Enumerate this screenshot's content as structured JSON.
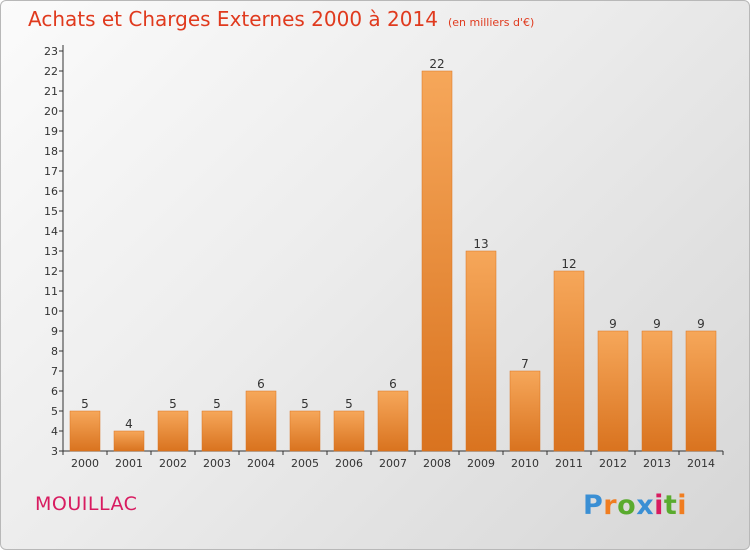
{
  "title": "Achats et Charges Externes 2000 à 2014",
  "unit_note": "(en milliers d'€)",
  "commune": "MOUILLAC",
  "logo": {
    "letters": [
      "P",
      "r",
      "o",
      "x",
      "i",
      "t",
      "i"
    ],
    "colors": [
      "#3a8fd4",
      "#f07d20",
      "#5aab2e",
      "#3a8fd4",
      "#d81b60",
      "#5aab2e",
      "#f07d20"
    ]
  },
  "colors": {
    "title": "#e03a1e",
    "commune": "#d81b60",
    "bar_light": "#f6a75a",
    "bar_dark": "#d9731f"
  },
  "chart_data": {
    "type": "bar",
    "categories": [
      "2000",
      "2001",
      "2002",
      "2003",
      "2004",
      "2005",
      "2006",
      "2007",
      "2008",
      "2009",
      "2010",
      "2011",
      "2012",
      "2013",
      "2014"
    ],
    "values": [
      5,
      4,
      5,
      5,
      6,
      5,
      5,
      6,
      22,
      13,
      7,
      12,
      9,
      9,
      9
    ],
    "ylim": [
      3,
      23
    ],
    "yticks": [
      3,
      4,
      5,
      6,
      7,
      8,
      9,
      10,
      11,
      12,
      13,
      14,
      15,
      16,
      17,
      18,
      19,
      20,
      21,
      22,
      23
    ],
    "grid": false
  }
}
